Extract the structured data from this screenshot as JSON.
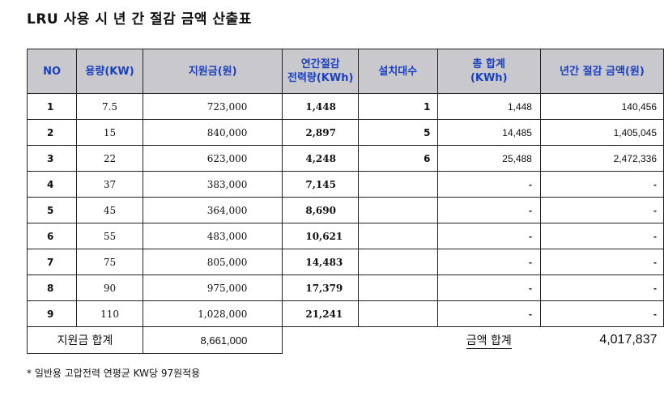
{
  "title": "LRU 사용 시 년 간 절감 금액 산출표",
  "headers": {
    "no": "NO",
    "capacity": "용량(KW)",
    "subsidy": "지원금(원)",
    "annual_power_line1": "연간절감",
    "annual_power_line2": "전력량(KWh)",
    "units": "설치대수",
    "total_line1": "총 합계",
    "total_line2": "(KWh)",
    "annual_amount": "년간 절감 금액(원)"
  },
  "rows": [
    {
      "no": "1",
      "capacity": "7.5",
      "subsidy": "723,000",
      "power": "1,448",
      "units": "1",
      "total": "1,448",
      "amount": "140,456"
    },
    {
      "no": "2",
      "capacity": "15",
      "subsidy": "840,000",
      "power": "2,897",
      "units": "5",
      "total": "14,485",
      "amount": "1,405,045"
    },
    {
      "no": "3",
      "capacity": "22",
      "subsidy": "623,000",
      "power": "4,248",
      "units": "6",
      "total": "25,488",
      "amount": "2,472,336"
    },
    {
      "no": "4",
      "capacity": "37",
      "subsidy": "383,000",
      "power": "7,145",
      "units": "",
      "total": "-",
      "amount": "-"
    },
    {
      "no": "5",
      "capacity": "45",
      "subsidy": "364,000",
      "power": "8,690",
      "units": "",
      "total": "-",
      "amount": "-"
    },
    {
      "no": "6",
      "capacity": "55",
      "subsidy": "483,000",
      "power": "10,621",
      "units": "",
      "total": "-",
      "amount": "-"
    },
    {
      "no": "7",
      "capacity": "75",
      "subsidy": "805,000",
      "power": "14,483",
      "units": "",
      "total": "-",
      "amount": "-"
    },
    {
      "no": "8",
      "capacity": "90",
      "subsidy": "975,000",
      "power": "17,379",
      "units": "",
      "total": "-",
      "amount": "-"
    },
    {
      "no": "9",
      "capacity": "110",
      "subsidy": "1,028,000",
      "power": "21,241",
      "units": "",
      "total": "-",
      "amount": "-"
    }
  ],
  "summary": {
    "subsidy_label": "지원금 합계",
    "subsidy_value": "8,661,000",
    "amount_label": "금액 합계",
    "amount_value": "4,017,837"
  },
  "note": "* 일반용 고압전력 연평균 KW당 97원적용",
  "colors": {
    "header_bg": "#c9c9cd",
    "header_text": "#1a3fbf",
    "border": "#222222"
  }
}
